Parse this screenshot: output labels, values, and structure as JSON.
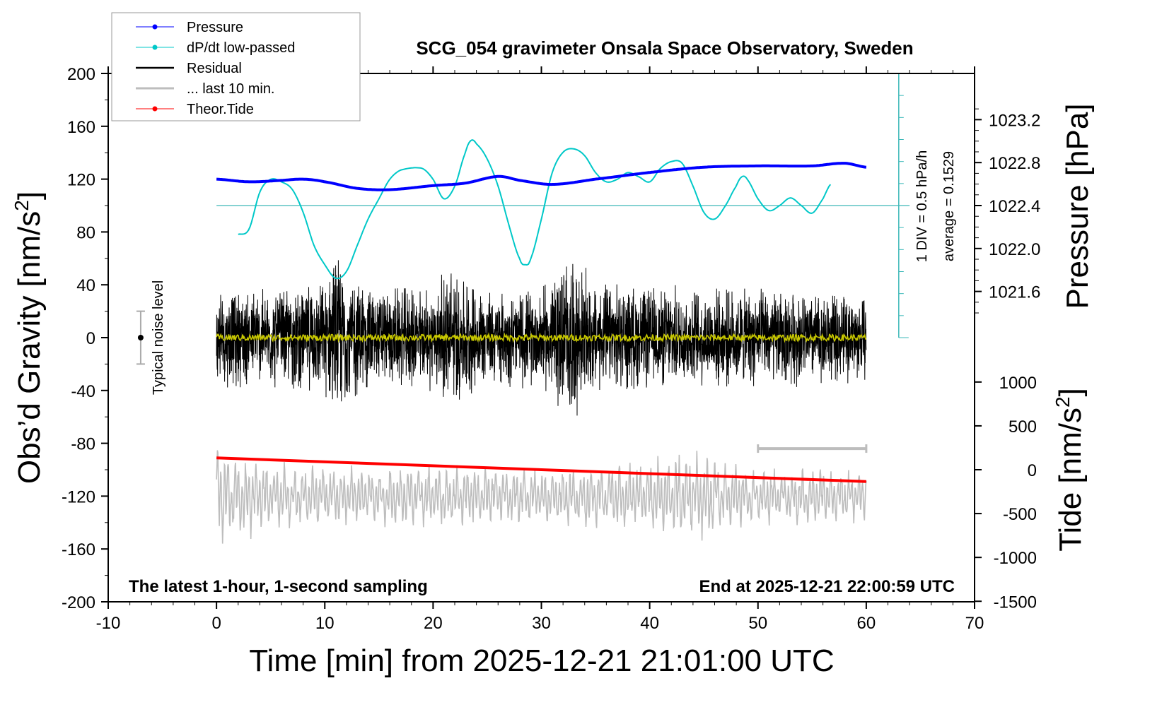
{
  "chart_data": {
    "type": "line",
    "title": "SCG_054 gravimeter Onsala Space Observatory, Sweden",
    "xlabel": "Time [min] from 2025-12-21 21:01:00 UTC",
    "ylabel": "Obs'd Gravity [nm/s2]",
    "ylabel_right_top": "Pressure [hPa]",
    "ylabel_right_bottom": "Tide [nm/s2]",
    "xlim": [
      -10,
      70
    ],
    "ylim": [
      -200,
      200
    ],
    "xticks": [
      "-10",
      "0",
      "10",
      "20",
      "30",
      "40",
      "50",
      "60",
      "70"
    ],
    "yticks": [
      "200",
      "160",
      "120",
      "80",
      "40",
      "0",
      "-40",
      "-80",
      "-120",
      "-160",
      "-200"
    ],
    "pressure_ticks": [
      "1023.2",
      "1022.8",
      "1022.4",
      "1022.0",
      "1021.6"
    ],
    "tide_ticks": [
      "1000",
      "500",
      "0",
      "-500",
      "-1000",
      "-1500"
    ],
    "legend": {
      "placement": "top-left",
      "entries": [
        {
          "label": "Pressure",
          "color": "#0000ff"
        },
        {
          "label": "dP/dt low-passed",
          "color": "#00c8c8"
        },
        {
          "label": "Residual",
          "color": "#000000"
        },
        {
          "label": "... last 10 min.",
          "color": "#bdbdbd"
        },
        {
          "label": "Theor.Tide",
          "color": "#ff0000"
        }
      ]
    },
    "annotations": {
      "bottom_left": "The latest 1-hour, 1-second sampling",
      "bottom_right": "End at 2025-12-21 22:00:59 UTC",
      "noise_label": "Typical noise level",
      "dpdt_scale": "1 DIV = 0.5 hPa/h",
      "dpdt_average": "average = 0.1529"
    },
    "noise_level": {
      "x": -7,
      "center": 0,
      "halfwidth": 20
    },
    "series": [
      {
        "name": "Pressure",
        "unit": "hPa",
        "color": "#0000ff",
        "x": [
          0,
          3,
          6,
          8,
          10,
          13,
          16,
          20,
          23,
          26,
          28,
          31,
          35,
          40,
          45,
          50,
          55,
          58,
          60
        ],
        "y": [
          1022.646,
          1022.621,
          1022.634,
          1022.646,
          1022.621,
          1022.56,
          1022.548,
          1022.585,
          1022.609,
          1022.671,
          1022.634,
          1022.597,
          1022.646,
          1022.708,
          1022.757,
          1022.769,
          1022.769,
          1022.794,
          1022.757
        ]
      },
      {
        "name": "dP/dt low-passed",
        "unit": "hPa/h",
        "color": "#00c8c8",
        "x": [
          2,
          3,
          4,
          5,
          6,
          7,
          8,
          9,
          10,
          11,
          12,
          13,
          14,
          15,
          16,
          17,
          19,
          20,
          21,
          22,
          23,
          23.5,
          24,
          25,
          26,
          27,
          28,
          28.5,
          29,
          30,
          31,
          32,
          33,
          34,
          35,
          36,
          37,
          38,
          39,
          40,
          41,
          42,
          43,
          44,
          45,
          46,
          47,
          48,
          48.5,
          49,
          50,
          51,
          52,
          53,
          54,
          55,
          56,
          56.7
        ],
        "y": [
          -0.34,
          -0.28,
          0.16,
          0.31,
          0.28,
          0.19,
          -0.08,
          -0.47,
          -0.7,
          -0.86,
          -0.78,
          -0.47,
          -0.16,
          0.08,
          0.31,
          0.42,
          0.44,
          0.31,
          0.08,
          0.23,
          0.63,
          0.77,
          0.73,
          0.55,
          0.23,
          -0.23,
          -0.63,
          -0.7,
          -0.63,
          -0.16,
          0.39,
          0.63,
          0.67,
          0.59,
          0.39,
          0.28,
          0.31,
          0.39,
          0.34,
          0.28,
          0.44,
          0.52,
          0.5,
          0.23,
          -0.08,
          -0.16,
          0,
          0.23,
          0.34,
          0.31,
          0.08,
          -0.06,
          0,
          0.09,
          0,
          -0.09,
          0.08,
          0.25
        ]
      },
      {
        "name": "Residual",
        "unit": "nm/s2",
        "color": "#000000",
        "x": [
          0,
          5,
          10,
          11,
          12,
          15,
          20,
          21.5,
          25,
          30,
          32.5,
          35,
          40,
          45,
          50,
          55,
          60
        ],
        "amplitude": [
          40,
          40,
          45,
          70,
          55,
          40,
          42,
          60,
          38,
          40,
          70,
          45,
          42,
          40,
          40,
          38,
          35
        ]
      },
      {
        "name": "... last 10 min.",
        "unit": "nm/s2",
        "color": "#bdbdbd",
        "x": [
          0,
          5,
          10,
          20,
          30,
          40,
          43,
          50,
          60
        ],
        "amplitude": [
          1150,
          750,
          650,
          700,
          650,
          800,
          1100,
          650,
          600
        ]
      },
      {
        "name": "Theor.Tide",
        "unit": "nm/s2",
        "color": "#ff0000",
        "x": [
          0,
          60
        ],
        "y": [
          135,
          -135
        ]
      }
    ]
  }
}
